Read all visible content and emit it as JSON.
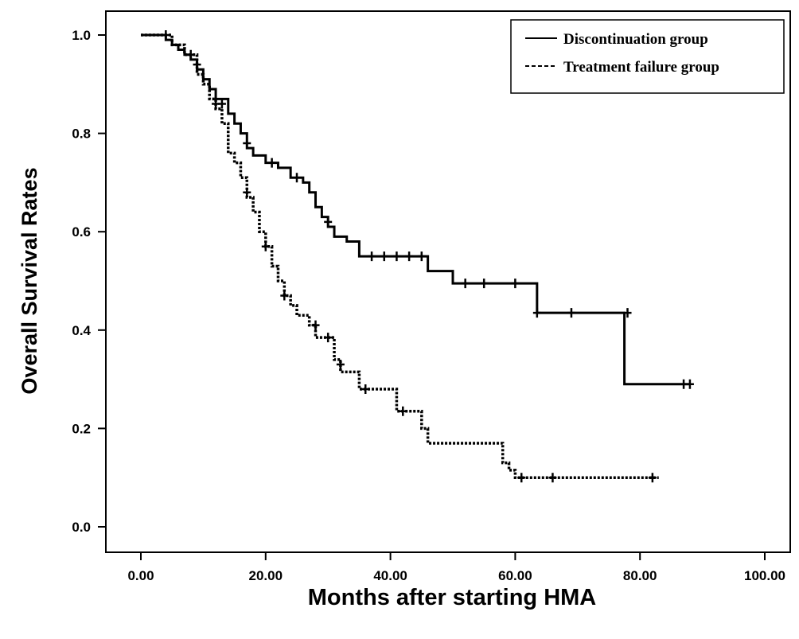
{
  "chart_data": {
    "type": "line",
    "subtype": "kaplan-meier step",
    "xlabel": "Months after starting HMA",
    "ylabel": "Overall Survival Rates",
    "xlim": [
      0,
      100
    ],
    "ylim": [
      0,
      1
    ],
    "xticks": [
      "0.00",
      "20.00",
      "40.00",
      "60.00",
      "80.00",
      "100.00"
    ],
    "yticks": [
      "0.0",
      "0.2",
      "0.4",
      "0.6",
      "0.8",
      "1.0"
    ],
    "grid": false,
    "legend_position": "top-right",
    "series": [
      {
        "name": "Discontinuation group",
        "style": "solid",
        "color": "#000000",
        "steps": [
          [
            0,
            1.0
          ],
          [
            4,
            0.99
          ],
          [
            5,
            0.98
          ],
          [
            6,
            0.97
          ],
          [
            7,
            0.96
          ],
          [
            8,
            0.95
          ],
          [
            9,
            0.93
          ],
          [
            10,
            0.91
          ],
          [
            11,
            0.89
          ],
          [
            12,
            0.87
          ],
          [
            14,
            0.84
          ],
          [
            15,
            0.82
          ],
          [
            16,
            0.8
          ],
          [
            17,
            0.77
          ],
          [
            18,
            0.755
          ],
          [
            20,
            0.74
          ],
          [
            22,
            0.73
          ],
          [
            24,
            0.71
          ],
          [
            26,
            0.7
          ],
          [
            27,
            0.68
          ],
          [
            28,
            0.65
          ],
          [
            29,
            0.63
          ],
          [
            30,
            0.61
          ],
          [
            31,
            0.59
          ],
          [
            33,
            0.58
          ],
          [
            35,
            0.55
          ],
          [
            46,
            0.52
          ],
          [
            50,
            0.495
          ],
          [
            63.5,
            0.435
          ],
          [
            77.5,
            0.29
          ],
          [
            88,
            0.29
          ]
        ],
        "censored": [
          [
            4,
            1.0
          ],
          [
            9,
            0.94
          ],
          [
            13,
            0.86
          ],
          [
            17,
            0.78
          ],
          [
            21,
            0.74
          ],
          [
            25,
            0.71
          ],
          [
            30,
            0.62
          ],
          [
            37,
            0.55
          ],
          [
            39,
            0.55
          ],
          [
            41,
            0.55
          ],
          [
            43,
            0.55
          ],
          [
            45,
            0.55
          ],
          [
            52,
            0.495
          ],
          [
            55,
            0.495
          ],
          [
            60,
            0.495
          ],
          [
            63.5,
            0.435
          ],
          [
            69,
            0.435
          ],
          [
            78,
            0.435
          ],
          [
            87,
            0.29
          ],
          [
            88,
            0.29
          ]
        ]
      },
      {
        "name": "Treatment failure group",
        "style": "dotted",
        "color": "#000000",
        "steps": [
          [
            0,
            1.0
          ],
          [
            5,
            0.98
          ],
          [
            7,
            0.96
          ],
          [
            9,
            0.92
          ],
          [
            10,
            0.9
          ],
          [
            11,
            0.87
          ],
          [
            12,
            0.85
          ],
          [
            13,
            0.82
          ],
          [
            14,
            0.76
          ],
          [
            15,
            0.74
          ],
          [
            16,
            0.71
          ],
          [
            17,
            0.67
          ],
          [
            18,
            0.64
          ],
          [
            19,
            0.6
          ],
          [
            20,
            0.57
          ],
          [
            21,
            0.53
          ],
          [
            22,
            0.5
          ],
          [
            23,
            0.47
          ],
          [
            24,
            0.45
          ],
          [
            25,
            0.43
          ],
          [
            27,
            0.41
          ],
          [
            28,
            0.385
          ],
          [
            31,
            0.34
          ],
          [
            32,
            0.315
          ],
          [
            35,
            0.28
          ],
          [
            41,
            0.235
          ],
          [
            45,
            0.2
          ],
          [
            46,
            0.17
          ],
          [
            58,
            0.13
          ],
          [
            59,
            0.115
          ],
          [
            60,
            0.1
          ],
          [
            83,
            0.1
          ]
        ],
        "censored": [
          [
            8,
            0.96
          ],
          [
            12,
            0.86
          ],
          [
            17,
            0.68
          ],
          [
            20,
            0.57
          ],
          [
            23,
            0.47
          ],
          [
            28,
            0.41
          ],
          [
            30,
            0.385
          ],
          [
            32,
            0.33
          ],
          [
            36,
            0.28
          ],
          [
            42,
            0.235
          ],
          [
            61,
            0.1
          ],
          [
            66,
            0.1
          ],
          [
            82,
            0.1
          ]
        ]
      }
    ]
  }
}
